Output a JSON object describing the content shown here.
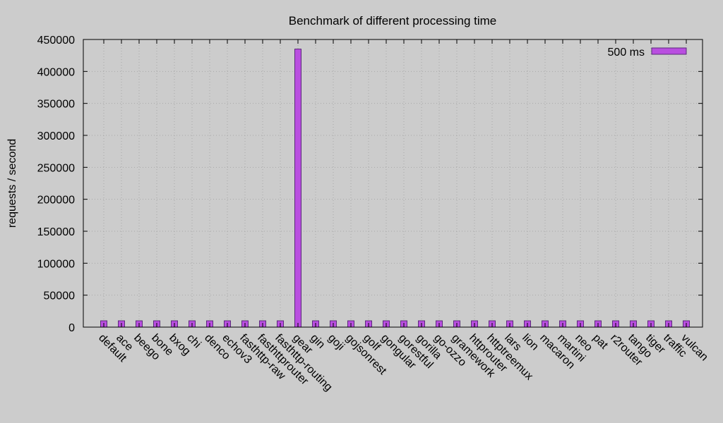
{
  "chart_data": {
    "type": "bar",
    "title": "Benchmark of different processing time",
    "xlabel": "",
    "ylabel": "requests / second",
    "ylim": [
      0,
      450000
    ],
    "yticks": [
      "0",
      "50000",
      "100000",
      "150000",
      "200000",
      "250000",
      "300000",
      "350000",
      "400000",
      "450000"
    ],
    "grid": true,
    "legend_position": "top-right",
    "categories": [
      "default",
      "ace",
      "beego",
      "bone",
      "bxog",
      "chi",
      "denco",
      "echov3",
      "fasthttp-raw",
      "fasthttprouter",
      "fasthttp-routing",
      "gear",
      "gin",
      "goji",
      "gojsonrest",
      "golf",
      "gongular",
      "gorestful",
      "gorilla",
      "go-ozzo",
      "gramework",
      "httprouter",
      "httptreemux",
      "lars",
      "lion",
      "macaron",
      "martini",
      "neo",
      "pat",
      "r2router",
      "tango",
      "tiger",
      "traffic",
      "vulcan"
    ],
    "series": [
      {
        "name": "500 ms",
        "color": "#b94ee0",
        "values": [
          9900,
          9900,
          9900,
          9900,
          9900,
          9900,
          9900,
          9900,
          9900,
          9900,
          9900,
          435000,
          9900,
          9900,
          9900,
          9900,
          9900,
          9900,
          9900,
          9900,
          9900,
          9900,
          9900,
          9900,
          9900,
          9900,
          9900,
          9900,
          9900,
          9900,
          9900,
          9900,
          9900,
          9900
        ]
      }
    ]
  }
}
